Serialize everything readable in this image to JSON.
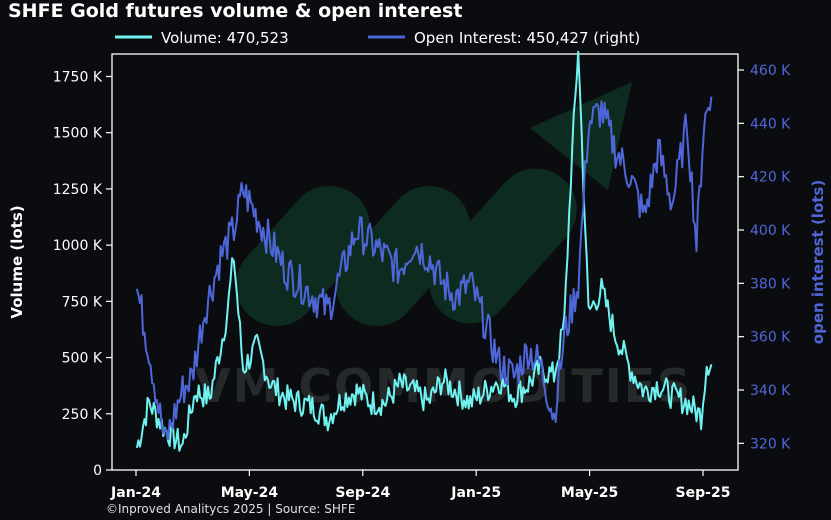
{
  "title": "SHFE Gold futures volume & open interest",
  "footer": "©Inproved Analitycs 2025 | Source: SHFE",
  "colors": {
    "background": "#0b0c10",
    "volume": "#6ff2f0",
    "open_interest": "#4f66d9",
    "left_axis_text": "#ffffff",
    "right_axis_text": "#4f66d9"
  },
  "chart_data": {
    "type": "line",
    "title": "SHFE Gold futures volume & open interest",
    "xlabel": "",
    "ylabel": "Volume (lots)",
    "y2label": "open interest (lots)",
    "x_ticks": [
      "Jan-24",
      "May-24",
      "Sep-24",
      "Jan-25",
      "May-25",
      "Sep-25"
    ],
    "ylim": [
      0,
      1850000
    ],
    "y_ticks": [
      {
        "value": 0,
        "label": "0"
      },
      {
        "value": 250000,
        "label": "250 K"
      },
      {
        "value": 500000,
        "label": "500 K"
      },
      {
        "value": 750000,
        "label": "750 K"
      },
      {
        "value": 1000000,
        "label": "1000 K"
      },
      {
        "value": 1250000,
        "label": "1250 K"
      },
      {
        "value": 1500000,
        "label": "1500 K"
      },
      {
        "value": 1750000,
        "label": "1750 K"
      }
    ],
    "y2lim": [
      310000,
      466000
    ],
    "y2_ticks": [
      {
        "value": 320000,
        "label": "320 K"
      },
      {
        "value": 340000,
        "label": "340 K"
      },
      {
        "value": 360000,
        "label": "360 K"
      },
      {
        "value": 380000,
        "label": "380 K"
      },
      {
        "value": 400000,
        "label": "400 K"
      },
      {
        "value": 420000,
        "label": "420 K"
      },
      {
        "value": 440000,
        "label": "440 K"
      },
      {
        "value": 460000,
        "label": "460 K"
      }
    ],
    "legend": "top-center",
    "series": [
      {
        "name": "Volume: 470,523",
        "axis": "left",
        "x": [
          "2024-01-02",
          "2024-01-15",
          "2024-02-01",
          "2024-02-20",
          "2024-03-05",
          "2024-03-20",
          "2024-04-01",
          "2024-04-08",
          "2024-04-15",
          "2024-04-25",
          "2024-05-10",
          "2024-05-25",
          "2024-06-10",
          "2024-06-25",
          "2024-07-10",
          "2024-07-25",
          "2024-08-10",
          "2024-08-25",
          "2024-09-10",
          "2024-09-25",
          "2024-10-10",
          "2024-10-25",
          "2024-11-10",
          "2024-11-25",
          "2024-12-10",
          "2024-12-25",
          "2025-01-10",
          "2025-01-25",
          "2025-02-10",
          "2025-02-25",
          "2025-03-10",
          "2025-03-25",
          "2025-04-05",
          "2025-04-12",
          "2025-04-20",
          "2025-05-01",
          "2025-05-15",
          "2025-05-30",
          "2025-06-15",
          "2025-06-30",
          "2025-07-15",
          "2025-07-30",
          "2025-08-15",
          "2025-08-30",
          "2025-09-05",
          "2025-09-10"
        ],
        "values": [
          100000,
          300000,
          180000,
          110000,
          350000,
          320000,
          550000,
          700000,
          950000,
          450000,
          550000,
          380000,
          320000,
          300000,
          280000,
          230000,
          320000,
          350000,
          300000,
          300000,
          380000,
          350000,
          300000,
          400000,
          350000,
          300000,
          350000,
          400000,
          330000,
          380000,
          450000,
          420000,
          650000,
          1300000,
          1880000,
          700000,
          800000,
          600000,
          450000,
          350000,
          380000,
          330000,
          300000,
          240000,
          480000,
          470000
        ]
      },
      {
        "name": "Open Interest: 450,427 (right)",
        "axis": "right",
        "x": [
          "2024-01-02",
          "2024-01-15",
          "2024-02-01",
          "2024-02-20",
          "2024-03-01",
          "2024-03-15",
          "2024-04-01",
          "2024-04-15",
          "2024-04-25",
          "2024-05-10",
          "2024-05-25",
          "2024-06-10",
          "2024-06-25",
          "2024-07-10",
          "2024-07-25",
          "2024-08-10",
          "2024-08-25",
          "2024-09-10",
          "2024-09-25",
          "2024-10-10",
          "2024-10-25",
          "2024-11-10",
          "2024-11-25",
          "2024-12-10",
          "2024-12-25",
          "2025-01-10",
          "2025-01-25",
          "2025-02-10",
          "2025-02-25",
          "2025-03-10",
          "2025-03-25",
          "2025-04-05",
          "2025-04-20",
          "2025-05-01",
          "2025-05-15",
          "2025-05-30",
          "2025-06-15",
          "2025-06-30",
          "2025-07-15",
          "2025-07-30",
          "2025-08-15",
          "2025-08-25",
          "2025-09-02",
          "2025-09-10"
        ],
        "values": [
          378000,
          355000,
          320000,
          340000,
          345000,
          370000,
          390000,
          400000,
          415000,
          405000,
          395000,
          385000,
          380000,
          375000,
          370000,
          385000,
          400000,
          395000,
          390000,
          385000,
          395000,
          390000,
          380000,
          375000,
          380000,
          365000,
          350000,
          345000,
          355000,
          350000,
          330000,
          360000,
          380000,
          440000,
          445000,
          430000,
          420000,
          405000,
          430000,
          410000,
          440000,
          395000,
          440000,
          450000
        ]
      }
    ]
  }
}
